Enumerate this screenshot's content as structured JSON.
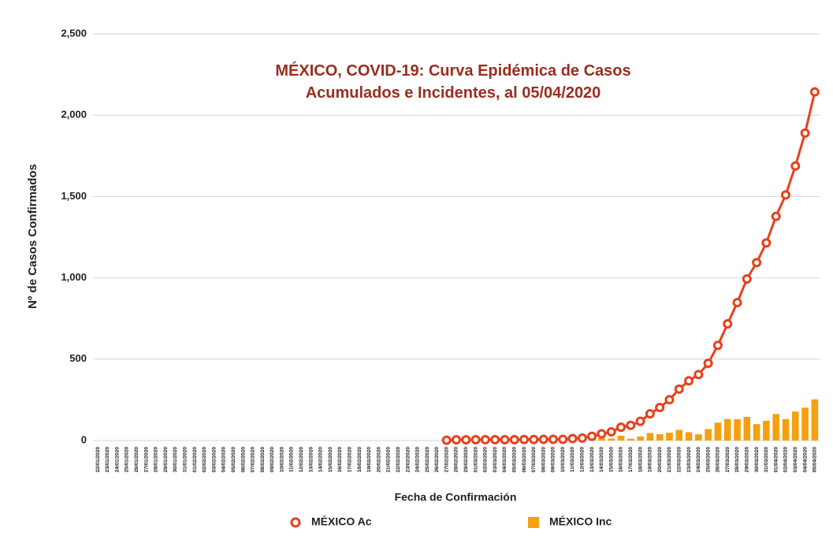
{
  "chart_data": {
    "type": "combo",
    "title": "MÉXICO, COVID-19: Curva Epidémica de Casos Acumulados e Incidentes, al 05/04/2020",
    "x_label": "Fecha de Confirmación",
    "y_label": "Nº de Casos Confirmados",
    "categories": [
      "22/01/2020",
      "23/01/2020",
      "24/01/2020",
      "25/01/2020",
      "26/01/2020",
      "27/01/2020",
      "28/01/2020",
      "29/01/2020",
      "30/01/2020",
      "31/01/2020",
      "01/02/2020",
      "02/02/2020",
      "03/02/2020",
      "04/02/2020",
      "05/02/2020",
      "06/02/2020",
      "07/02/2020",
      "08/02/2020",
      "09/02/2020",
      "10/02/2020",
      "11/02/2020",
      "12/02/2020",
      "13/02/2020",
      "14/02/2020",
      "15/02/2020",
      "16/02/2020",
      "17/02/2020",
      "18/02/2020",
      "19/02/2020",
      "20/02/2020",
      "21/02/2020",
      "22/02/2020",
      "23/02/2020",
      "24/02/2020",
      "25/02/2020",
      "26/02/2020",
      "27/02/2020",
      "28/02/2020",
      "29/02/2020",
      "01/03/2020",
      "02/03/2020",
      "03/03/2020",
      "04/03/2020",
      "05/03/2020",
      "06/03/2020",
      "07/03/2020",
      "08/03/2020",
      "09/03/2020",
      "10/03/2020",
      "11/03/2020",
      "12/03/2020",
      "13/03/2020",
      "14/03/2020",
      "15/03/2020",
      "16/03/2020",
      "17/03/2020",
      "18/03/2020",
      "19/03/2020",
      "20/03/2020",
      "21/03/2020",
      "22/03/2020",
      "23/03/2020",
      "24/03/2020",
      "25/03/2020",
      "26/03/2020",
      "27/03/2020",
      "28/03/2020",
      "29/03/2020",
      "30/03/2020",
      "31/03/2020",
      "01/04/2020",
      "02/04/2020",
      "03/04/2020",
      "04/04/2020",
      "05/04/2020"
    ],
    "series": [
      {
        "name": "MÉXICO Ac",
        "type": "line",
        "color": "#e8401c",
        "values": [
          null,
          null,
          null,
          null,
          null,
          null,
          null,
          null,
          null,
          null,
          null,
          null,
          null,
          null,
          null,
          null,
          null,
          null,
          null,
          null,
          null,
          null,
          null,
          null,
          null,
          null,
          null,
          null,
          null,
          null,
          null,
          null,
          null,
          null,
          null,
          null,
          2,
          4,
          4,
          5,
          5,
          5,
          5,
          5,
          6,
          6,
          7,
          7,
          7,
          12,
          15,
          26,
          41,
          53,
          82,
          93,
          118,
          164,
          203,
          251,
          316,
          367,
          405,
          475,
          585,
          717,
          848,
          993,
          1094,
          1215,
          1378,
          1510,
          1688,
          1890,
          2143
        ]
      },
      {
        "name": "MÉXICO Inc",
        "type": "bar",
        "color": "#f5a00f",
        "values": [
          null,
          null,
          null,
          null,
          null,
          null,
          null,
          null,
          null,
          null,
          null,
          null,
          null,
          null,
          null,
          null,
          null,
          null,
          null,
          null,
          null,
          null,
          null,
          null,
          null,
          null,
          null,
          null,
          null,
          null,
          null,
          null,
          null,
          null,
          null,
          null,
          2,
          2,
          0,
          1,
          0,
          0,
          0,
          0,
          1,
          0,
          1,
          0,
          0,
          5,
          3,
          11,
          15,
          12,
          29,
          11,
          25,
          46,
          39,
          48,
          65,
          51,
          38,
          70,
          110,
          132,
          131,
          145,
          101,
          121,
          163,
          132,
          178,
          202,
          253
        ]
      }
    ],
    "ylim": [
      0,
      2500
    ],
    "yticks": [
      0,
      500,
      {
        "value": 1000,
        "label": "1,000"
      },
      {
        "value": 1500,
        "label": "1,500"
      },
      {
        "value": 2000,
        "label": "2,000"
      },
      {
        "value": 2500,
        "label": "2,500"
      }
    ],
    "grid": true
  }
}
